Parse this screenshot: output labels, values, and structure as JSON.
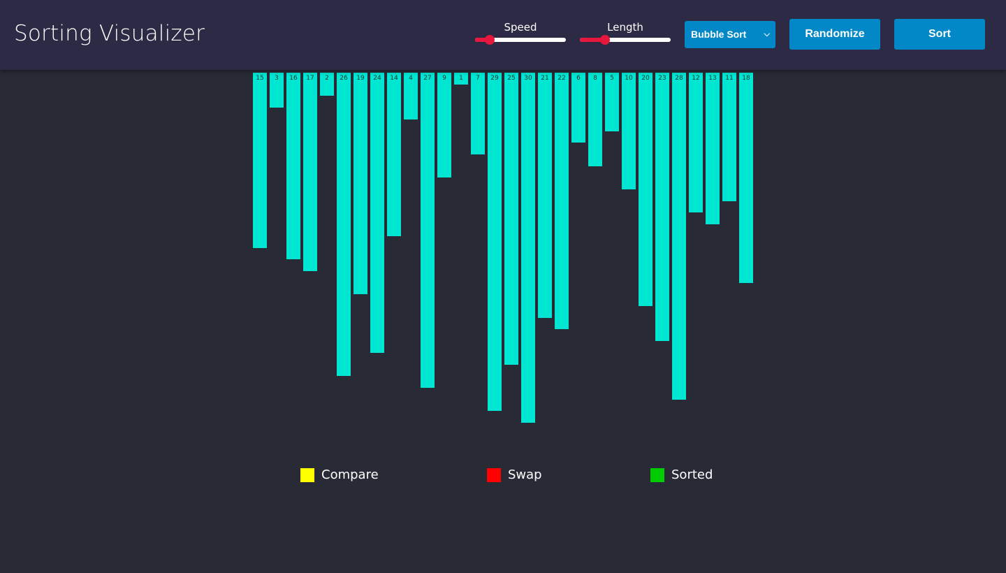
{
  "app": {
    "title": "Sorting Visualizer"
  },
  "controls": {
    "speed": {
      "label": "Speed",
      "value_fraction": 0.16
    },
    "length": {
      "label": "Length",
      "value_fraction": 0.28
    },
    "algorithm": {
      "selected": "Bubble Sort"
    },
    "randomize_label": "Randomize",
    "sort_label": "Sort"
  },
  "colors": {
    "bar": "#00e6d2",
    "slider_accent": "#e8173d",
    "button": "#0288c7",
    "compare": "#ffff00",
    "swap": "#ff0000",
    "sorted": "#00cc00"
  },
  "array": [
    15,
    3,
    16,
    17,
    2,
    26,
    19,
    24,
    14,
    4,
    27,
    9,
    1,
    7,
    29,
    25,
    30,
    21,
    22,
    6,
    8,
    5,
    10,
    20,
    23,
    28,
    12,
    13,
    11,
    18
  ],
  "legend": [
    {
      "label": "Compare",
      "color": "#ffff00"
    },
    {
      "label": "Swap",
      "color": "#ff0000"
    },
    {
      "label": "Sorted",
      "color": "#00cc00"
    }
  ]
}
